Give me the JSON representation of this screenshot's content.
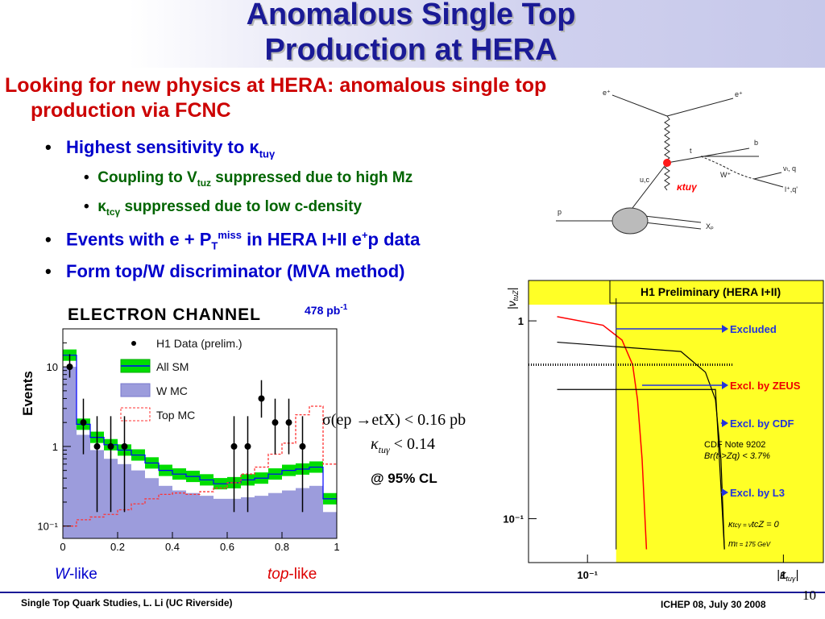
{
  "slide": {
    "title_line1": "Anomalous Single Top",
    "title_line2": "Production at HERA",
    "headline": "Looking for new physics at HERA: anomalous single top production via FCNC",
    "bullets": [
      {
        "text": "Highest sensitivity to κ",
        "sub": "tuγ"
      },
      {
        "text": "Events with e + P",
        "sub": "T",
        "sup": "miss",
        "rest": " in HERA I+II e",
        "sup2": "+",
        "rest2": "p data"
      },
      {
        "text": "Form top/W discriminator (MVA method)"
      }
    ],
    "sub_bullets": [
      {
        "pre": "Coupling to V",
        "sub": "tuz",
        "post": " suppressed due to high Mz"
      },
      {
        "pre": "κ",
        "sub": "tcγ",
        "post": " suppressed due to low c-density"
      }
    ],
    "result_line1": "σ(ep →etX) < 0.16 pb",
    "result_line2_pre": "κ",
    "result_line2_sub": "tuγ",
    "result_line2_post": " < 0.14",
    "cl_label": "@ 95% CL",
    "footer_left": "Single Top Quark Studies, L. Li (UC Riverside)",
    "footer_right": "ICHEP 08,  July 30 2008",
    "page_number": "10"
  },
  "feynman": {
    "labels": [
      "e⁺",
      "e⁺",
      "t",
      "b",
      "W⁺",
      "u,c",
      "νₗ, q",
      "l⁺,q'",
      "p",
      "Xₚ"
    ],
    "coupling_label": "κtuγ"
  },
  "histogram": {
    "channel_title": "ELECTRON CHANNEL",
    "luminosity": "478 pb",
    "luminosity_sup": "-1",
    "ylabel": "Events",
    "legend": [
      "H1 Data (prelim.)",
      "All SM",
      "W MC",
      "Top MC"
    ],
    "xticks": [
      "0",
      "0.2",
      "0.4",
      "0.6",
      "0.8",
      "1"
    ],
    "yticks": [
      "10",
      "1",
      "10⁻¹"
    ],
    "x_left_label_it": "W",
    "x_left_label": "-like",
    "x_right_label_it": "top",
    "x_right_label": "-like",
    "colors": {
      "sm_band": "#00dd00",
      "w_mc": "#9c9cdc",
      "top_mc": "#ff3333",
      "sm_line": "#0000ff"
    }
  },
  "limit_plot": {
    "title": "H1 Preliminary (HERA I+II)",
    "ylabel": "|ν",
    "ylabel_sub": "tuZ",
    "xlabel": "|κ",
    "xlabel_sub": "tuγ",
    "yticks": [
      "1",
      "10⁻¹"
    ],
    "xticks": [
      "10⁻¹",
      "1"
    ],
    "excluded_label": "Excluded",
    "zeus_label": "Excl. by ZEUS",
    "cdf_label": "Excl. by CDF",
    "cdf_note1": "CDF Note 9202",
    "cdf_note2": "Br(t->Zq) < 3.7%",
    "l3_label": "Excl. by L3",
    "param1": "κ",
    "param1_rest": "tcγ = ν",
    "param1_end": "tcZ = 0",
    "param2": "m",
    "param2_rest": "t = 175 GeV",
    "colors": {
      "background": "#ffff26",
      "zeus": "#ff0000",
      "arrow": "#2233dd",
      "box": "#000000"
    }
  },
  "chart_data": [
    {
      "type": "bar",
      "title": "ELECTRON CHANNEL",
      "xlabel": "",
      "ylabel": "Events",
      "log_y": true,
      "ylim": [
        0.07,
        30
      ],
      "xlim": [
        0,
        1
      ],
      "bin_edges": [
        0,
        0.05,
        0.1,
        0.15,
        0.2,
        0.25,
        0.3,
        0.35,
        0.4,
        0.45,
        0.5,
        0.55,
        0.6,
        0.65,
        0.7,
        0.75,
        0.8,
        0.85,
        0.9,
        0.95,
        1.0
      ],
      "series": [
        {
          "name": "All SM",
          "values": [
            14,
            1.9,
            1.3,
            1.05,
            0.9,
            0.78,
            0.62,
            0.5,
            0.45,
            0.42,
            0.38,
            0.34,
            0.35,
            0.38,
            0.4,
            0.45,
            0.5,
            0.52,
            0.55,
            0.22
          ]
        },
        {
          "name": "W MC",
          "values": [
            10,
            1.4,
            0.9,
            0.7,
            0.6,
            0.5,
            0.4,
            0.32,
            0.28,
            0.26,
            0.24,
            0.22,
            0.22,
            0.23,
            0.24,
            0.26,
            0.28,
            0.3,
            0.32,
            0.15
          ]
        },
        {
          "name": "Top MC",
          "values": [
            0.1,
            0.12,
            0.13,
            0.14,
            0.16,
            0.19,
            0.22,
            0.25,
            0.26,
            0.25,
            0.27,
            0.3,
            0.35,
            0.45,
            0.55,
            0.8,
            1.1,
            2.5,
            3.2,
            0.6
          ]
        },
        {
          "name": "H1 Data (prelim.)",
          "x": [
            0.025,
            0.075,
            0.125,
            0.175,
            0.225,
            0.625,
            0.675,
            0.725,
            0.775,
            0.825,
            0.875
          ],
          "values": [
            10,
            2,
            1,
            1,
            1,
            1,
            1,
            4,
            2,
            2,
            1
          ]
        }
      ]
    },
    {
      "type": "line",
      "title": "H1 Preliminary (HERA I+II)",
      "xlabel": "|κtuγ|",
      "ylabel": "|νtuZ|",
      "log_x": true,
      "log_y": true,
      "series": [
        {
          "name": "Excl. by ZEUS",
          "x": [
            0.07,
            0.12,
            0.15,
            0.17,
            0.18,
            0.19,
            0.2
          ],
          "values": [
            1.05,
            0.95,
            0.8,
            0.6,
            0.4,
            0.2,
            0.07
          ]
        },
        {
          "name": "Excl. by CDF",
          "x": [
            0.07,
            0.3,
            0.4,
            0.45,
            0.48,
            0.5
          ],
          "values": [
            0.78,
            0.7,
            0.55,
            0.4,
            0.2,
            0.07
          ]
        },
        {
          "name": "Excl. by L3",
          "x": [
            0.07,
            0.45,
            0.5
          ],
          "values": [
            0.45,
            0.45,
            0.07
          ]
        },
        {
          "name": "Excluded",
          "x": [
            0.14,
            0.14
          ],
          "values": [
            0.07,
            1.3
          ]
        }
      ]
    }
  ]
}
